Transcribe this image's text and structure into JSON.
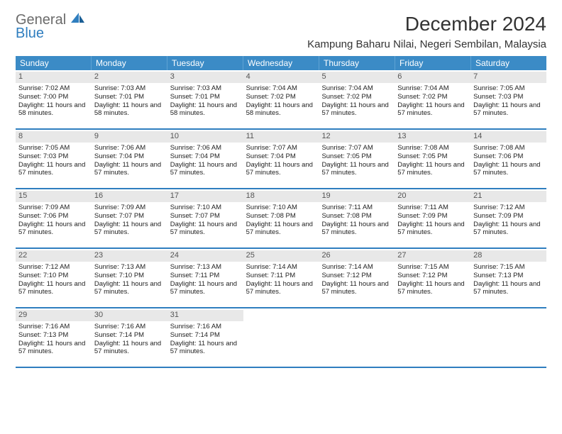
{
  "logo": {
    "text1": "General",
    "text2": "Blue"
  },
  "title": "December 2024",
  "location": "Kampung Baharu Nilai, Negeri Sembilan, Malaysia",
  "colors": {
    "header_bg": "#3b8bc6",
    "header_text": "#ffffff",
    "row_border": "#2f7ebf",
    "daynum_bg": "#e8e8e8",
    "logo_gray": "#6b6b6b",
    "logo_blue": "#2f7ebf",
    "text": "#222222"
  },
  "typography": {
    "title_fontsize": 28,
    "location_fontsize": 15,
    "dayheader_fontsize": 12,
    "cell_fontsize": 9.5
  },
  "day_headers": [
    "Sunday",
    "Monday",
    "Tuesday",
    "Wednesday",
    "Thursday",
    "Friday",
    "Saturday"
  ],
  "weeks": [
    [
      {
        "num": "1",
        "sunrise": "Sunrise: 7:02 AM",
        "sunset": "Sunset: 7:00 PM",
        "daylight": "Daylight: 11 hours and 58 minutes."
      },
      {
        "num": "2",
        "sunrise": "Sunrise: 7:03 AM",
        "sunset": "Sunset: 7:01 PM",
        "daylight": "Daylight: 11 hours and 58 minutes."
      },
      {
        "num": "3",
        "sunrise": "Sunrise: 7:03 AM",
        "sunset": "Sunset: 7:01 PM",
        "daylight": "Daylight: 11 hours and 58 minutes."
      },
      {
        "num": "4",
        "sunrise": "Sunrise: 7:04 AM",
        "sunset": "Sunset: 7:02 PM",
        "daylight": "Daylight: 11 hours and 58 minutes."
      },
      {
        "num": "5",
        "sunrise": "Sunrise: 7:04 AM",
        "sunset": "Sunset: 7:02 PM",
        "daylight": "Daylight: 11 hours and 57 minutes."
      },
      {
        "num": "6",
        "sunrise": "Sunrise: 7:04 AM",
        "sunset": "Sunset: 7:02 PM",
        "daylight": "Daylight: 11 hours and 57 minutes."
      },
      {
        "num": "7",
        "sunrise": "Sunrise: 7:05 AM",
        "sunset": "Sunset: 7:03 PM",
        "daylight": "Daylight: 11 hours and 57 minutes."
      }
    ],
    [
      {
        "num": "8",
        "sunrise": "Sunrise: 7:05 AM",
        "sunset": "Sunset: 7:03 PM",
        "daylight": "Daylight: 11 hours and 57 minutes."
      },
      {
        "num": "9",
        "sunrise": "Sunrise: 7:06 AM",
        "sunset": "Sunset: 7:04 PM",
        "daylight": "Daylight: 11 hours and 57 minutes."
      },
      {
        "num": "10",
        "sunrise": "Sunrise: 7:06 AM",
        "sunset": "Sunset: 7:04 PM",
        "daylight": "Daylight: 11 hours and 57 minutes."
      },
      {
        "num": "11",
        "sunrise": "Sunrise: 7:07 AM",
        "sunset": "Sunset: 7:04 PM",
        "daylight": "Daylight: 11 hours and 57 minutes."
      },
      {
        "num": "12",
        "sunrise": "Sunrise: 7:07 AM",
        "sunset": "Sunset: 7:05 PM",
        "daylight": "Daylight: 11 hours and 57 minutes."
      },
      {
        "num": "13",
        "sunrise": "Sunrise: 7:08 AM",
        "sunset": "Sunset: 7:05 PM",
        "daylight": "Daylight: 11 hours and 57 minutes."
      },
      {
        "num": "14",
        "sunrise": "Sunrise: 7:08 AM",
        "sunset": "Sunset: 7:06 PM",
        "daylight": "Daylight: 11 hours and 57 minutes."
      }
    ],
    [
      {
        "num": "15",
        "sunrise": "Sunrise: 7:09 AM",
        "sunset": "Sunset: 7:06 PM",
        "daylight": "Daylight: 11 hours and 57 minutes."
      },
      {
        "num": "16",
        "sunrise": "Sunrise: 7:09 AM",
        "sunset": "Sunset: 7:07 PM",
        "daylight": "Daylight: 11 hours and 57 minutes."
      },
      {
        "num": "17",
        "sunrise": "Sunrise: 7:10 AM",
        "sunset": "Sunset: 7:07 PM",
        "daylight": "Daylight: 11 hours and 57 minutes."
      },
      {
        "num": "18",
        "sunrise": "Sunrise: 7:10 AM",
        "sunset": "Sunset: 7:08 PM",
        "daylight": "Daylight: 11 hours and 57 minutes."
      },
      {
        "num": "19",
        "sunrise": "Sunrise: 7:11 AM",
        "sunset": "Sunset: 7:08 PM",
        "daylight": "Daylight: 11 hours and 57 minutes."
      },
      {
        "num": "20",
        "sunrise": "Sunrise: 7:11 AM",
        "sunset": "Sunset: 7:09 PM",
        "daylight": "Daylight: 11 hours and 57 minutes."
      },
      {
        "num": "21",
        "sunrise": "Sunrise: 7:12 AM",
        "sunset": "Sunset: 7:09 PM",
        "daylight": "Daylight: 11 hours and 57 minutes."
      }
    ],
    [
      {
        "num": "22",
        "sunrise": "Sunrise: 7:12 AM",
        "sunset": "Sunset: 7:10 PM",
        "daylight": "Daylight: 11 hours and 57 minutes."
      },
      {
        "num": "23",
        "sunrise": "Sunrise: 7:13 AM",
        "sunset": "Sunset: 7:10 PM",
        "daylight": "Daylight: 11 hours and 57 minutes."
      },
      {
        "num": "24",
        "sunrise": "Sunrise: 7:13 AM",
        "sunset": "Sunset: 7:11 PM",
        "daylight": "Daylight: 11 hours and 57 minutes."
      },
      {
        "num": "25",
        "sunrise": "Sunrise: 7:14 AM",
        "sunset": "Sunset: 7:11 PM",
        "daylight": "Daylight: 11 hours and 57 minutes."
      },
      {
        "num": "26",
        "sunrise": "Sunrise: 7:14 AM",
        "sunset": "Sunset: 7:12 PM",
        "daylight": "Daylight: 11 hours and 57 minutes."
      },
      {
        "num": "27",
        "sunrise": "Sunrise: 7:15 AM",
        "sunset": "Sunset: 7:12 PM",
        "daylight": "Daylight: 11 hours and 57 minutes."
      },
      {
        "num": "28",
        "sunrise": "Sunrise: 7:15 AM",
        "sunset": "Sunset: 7:13 PM",
        "daylight": "Daylight: 11 hours and 57 minutes."
      }
    ],
    [
      {
        "num": "29",
        "sunrise": "Sunrise: 7:16 AM",
        "sunset": "Sunset: 7:13 PM",
        "daylight": "Daylight: 11 hours and 57 minutes."
      },
      {
        "num": "30",
        "sunrise": "Sunrise: 7:16 AM",
        "sunset": "Sunset: 7:14 PM",
        "daylight": "Daylight: 11 hours and 57 minutes."
      },
      {
        "num": "31",
        "sunrise": "Sunrise: 7:16 AM",
        "sunset": "Sunset: 7:14 PM",
        "daylight": "Daylight: 11 hours and 57 minutes."
      },
      null,
      null,
      null,
      null
    ]
  ]
}
